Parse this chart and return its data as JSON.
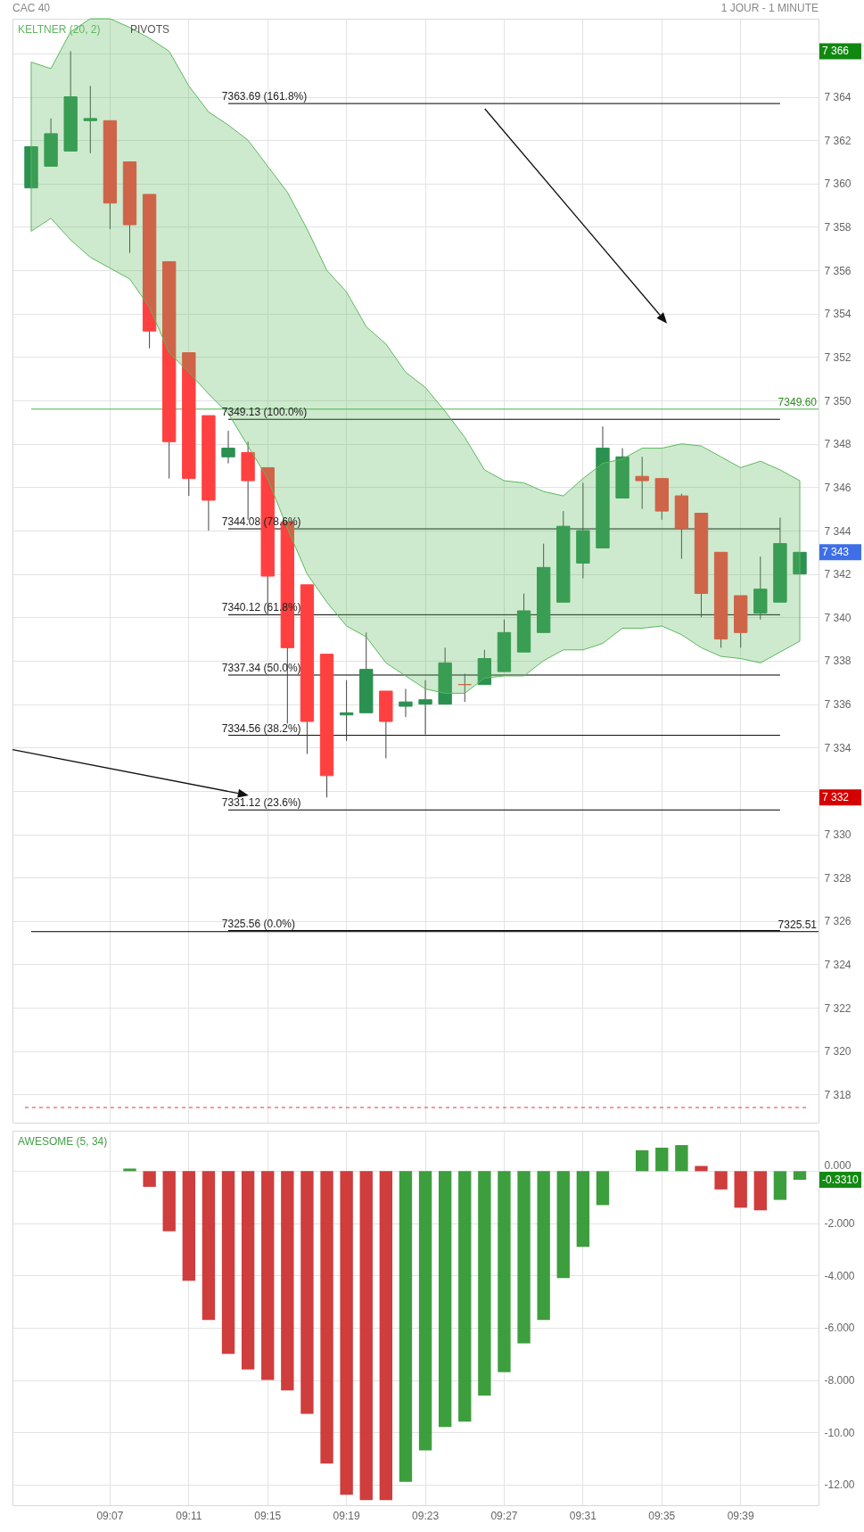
{
  "chart_data": [
    {
      "type": "candlestick",
      "title": "CAC 40",
      "subtitle": "1 JOUR - 1 MINUTE",
      "categories": [
        null,
        null,
        null,
        null,
        null,
        null,
        null,
        null,
        null,
        null,
        null,
        null,
        null,
        null,
        null,
        null,
        null,
        null,
        null,
        null,
        null,
        null,
        null,
        null,
        null,
        null,
        null,
        null,
        null,
        null,
        null,
        null,
        null,
        null,
        null,
        null,
        null,
        null,
        null,
        null
      ],
      "ohlc": [
        [
          7359.8,
          7361.7,
          7359.8,
          7361.7
        ],
        [
          7360.8,
          7363.0,
          7360.8,
          7362.3
        ],
        [
          7361.5,
          7366.1,
          7361.5,
          7364.0
        ],
        [
          7362.9,
          7364.5,
          7361.4,
          7363.0
        ],
        [
          7362.9,
          7362.9,
          7357.9,
          7359.1
        ],
        [
          7361.0,
          7361.0,
          7356.8,
          7358.1
        ],
        [
          7359.5,
          7359.5,
          7352.4,
          7353.2
        ],
        [
          7356.4,
          7356.4,
          7346.4,
          7348.1
        ],
        [
          7352.2,
          7352.2,
          7345.6,
          7346.4
        ],
        [
          7349.3,
          7349.3,
          7344.0,
          7345.4
        ],
        [
          7347.4,
          7348.6,
          7347.1,
          7347.8
        ],
        [
          7347.6,
          7348.1,
          7344.5,
          7346.3
        ],
        [
          7346.9,
          7346.9,
          7340.1,
          7341.9
        ],
        [
          7344.4,
          7344.4,
          7335.1,
          7338.6
        ],
        [
          7341.5,
          7341.5,
          7333.7,
          7335.2
        ],
        [
          7338.3,
          7338.3,
          7331.7,
          7332.7
        ],
        [
          7335.5,
          7337.1,
          7334.3,
          7335.6
        ],
        [
          7335.6,
          7339.3,
          7335.6,
          7337.6
        ],
        [
          7336.6,
          7336.6,
          7333.5,
          7335.2
        ],
        [
          7335.9,
          7336.7,
          7335.4,
          7336.1
        ],
        [
          7336.0,
          7337.1,
          7334.6,
          7336.2
        ],
        [
          7336.0,
          7338.6,
          7336.0,
          7337.9
        ],
        [
          7336.9,
          7337.4,
          7336.1,
          7336.9
        ],
        [
          7336.9,
          7338.5,
          7336.9,
          7338.1
        ],
        [
          7337.5,
          7339.9,
          7337.5,
          7339.3
        ],
        [
          7338.4,
          7341.1,
          7338.4,
          7340.3
        ],
        [
          7339.3,
          7343.4,
          7339.3,
          7342.3
        ],
        [
          7340.7,
          7344.9,
          7340.7,
          7344.2
        ],
        [
          7342.5,
          7346.2,
          7341.8,
          7344.0
        ],
        [
          7343.2,
          7348.8,
          7343.2,
          7347.8
        ],
        [
          7345.5,
          7347.8,
          7345.5,
          7347.4
        ],
        [
          7346.5,
          7347.4,
          7345.0,
          7346.3
        ],
        [
          7346.4,
          7346.4,
          7344.5,
          7344.9
        ],
        [
          7345.6,
          7345.7,
          7342.7,
          7344.1
        ],
        [
          7344.8,
          7344.8,
          7340.0,
          7341.1
        ],
        [
          7343.0,
          7343.0,
          7338.6,
          7339.0
        ],
        [
          7341.0,
          7341.0,
          7338.6,
          7339.3
        ],
        [
          7340.2,
          7342.8,
          7339.9,
          7341.3
        ],
        [
          7340.7,
          7344.6,
          7340.7,
          7343.4
        ],
        [
          7342.0,
          7343.0,
          7342.0,
          7343.0
        ]
      ],
      "colors": [
        "#2a9150",
        "#2a9150",
        "#2a9150",
        "#2a9150",
        "#ff4040",
        "#ff4040",
        "#ff4040",
        "#ff4040",
        "#ff4040",
        "#ff4040",
        "#2a9150",
        "#ff4040",
        "#ff4040",
        "#ff4040",
        "#ff4040",
        "#ff4040",
        "#2a9150",
        "#2a9150",
        "#ff4040",
        "#2a9150",
        "#2a9150",
        "#2a9150",
        "#ff4040",
        "#2a9150",
        "#2a9150",
        "#2a9150",
        "#2a9150",
        "#2a9150",
        "#2a9150",
        "#2a9150",
        "#2a9150",
        "#ff4040",
        "#ff4040",
        "#ff4040",
        "#ff4040",
        "#ff4040",
        "#ff4040",
        "#2a9150",
        "#2a9150",
        "#2a9150"
      ],
      "series": [
        {
          "type": "area",
          "name": "KELTNER (20, 2)",
          "color": "#5cb85c",
          "upper": [
            7365.6,
            7365.3,
            7367.0,
            7367.6,
            7367.6,
            7367.2,
            7366.7,
            7366.1,
            7364.5,
            7363.3,
            7362.7,
            7362.0,
            7360.8,
            7359.6,
            7357.9,
            7356.0,
            7355.0,
            7353.4,
            7352.6,
            7351.3,
            7350.6,
            7349.5,
            7348.3,
            7346.8,
            7346.3,
            7346.2,
            7345.8,
            7345.6,
            7346.4,
            7347.1,
            7347.3,
            7347.8,
            7347.8,
            7348.0,
            7347.9,
            7347.4,
            7346.9,
            7347.2,
            7346.8,
            7346.3
          ],
          "values": [
            null,
            null,
            null,
            null,
            null,
            null,
            null,
            null,
            null,
            null,
            null,
            null,
            null,
            null,
            null,
            null,
            null,
            null,
            null,
            null,
            null,
            null,
            null,
            null,
            null,
            null,
            null,
            null,
            null,
            null,
            null,
            null,
            null,
            null,
            null,
            null,
            null,
            null,
            null,
            null
          ],
          "lower": [
            7357.8,
            7358.4,
            7357.4,
            7356.6,
            7356.1,
            7355.6,
            7354.3,
            7352.2,
            7351.3,
            7350.3,
            7349.4,
            7347.9,
            7346.4,
            7344.1,
            7342.0,
            7340.7,
            7339.6,
            7339.1,
            7337.9,
            7337.3,
            7336.7,
            7336.5,
            7336.5,
            7337.2,
            7337.3,
            7337.3,
            7338.0,
            7338.5,
            7338.5,
            7338.8,
            7339.5,
            7339.5,
            7339.6,
            7339.2,
            7338.6,
            7338.2,
            7338.1,
            7337.9,
            7338.4,
            7338.9
          ]
        }
      ],
      "ylim": [
        7316.7,
        7367.6
      ],
      "yticks": [
        {
          "value": 7318,
          "label": "7 318"
        },
        {
          "value": 7320,
          "label": "7 320"
        },
        {
          "value": 7322,
          "label": "7 322"
        },
        {
          "value": 7324,
          "label": "7 324"
        },
        {
          "value": 7326,
          "label": "7 326"
        },
        {
          "value": 7328,
          "label": "7 328"
        },
        {
          "value": 7330,
          "label": "7 330"
        },
        {
          "value": 7332,
          "label": null
        },
        {
          "value": 7334,
          "label": "7 334"
        },
        {
          "value": 7336,
          "label": "7 336"
        },
        {
          "value": 7338,
          "label": "7 338"
        },
        {
          "value": 7340,
          "label": "7 340"
        },
        {
          "value": 7342,
          "label": "7 342"
        },
        {
          "value": 7344,
          "label": "7 344"
        },
        {
          "value": 7346,
          "label": "7 346"
        },
        {
          "value": 7348,
          "label": "7 348"
        },
        {
          "value": 7350,
          "label": "7 350"
        },
        {
          "value": 7352,
          "label": "7 352"
        },
        {
          "value": 7354,
          "label": "7 354"
        },
        {
          "value": 7356,
          "label": "7 356"
        },
        {
          "value": 7358,
          "label": "7 358"
        },
        {
          "value": 7360,
          "label": "7 360"
        },
        {
          "value": 7362,
          "label": "7 362"
        },
        {
          "value": 7364,
          "label": "7 364"
        },
        {
          "value": 7366,
          "label": null
        }
      ],
      "ref_lines": [
        {
          "axis": "y",
          "value": 7363.69,
          "label": "7363.69  (161.8%)"
        },
        {
          "axis": "y",
          "value": 7349.13,
          "label": "7349.13  (100.0%)"
        },
        {
          "axis": "y",
          "value": 7344.08,
          "label": "7344.08  (78.6%)"
        },
        {
          "axis": "y",
          "value": 7340.12,
          "label": "7340.12  (61.8%)"
        },
        {
          "axis": "y",
          "value": 7337.34,
          "label": "7337.34  (50.0%)"
        },
        {
          "axis": "y",
          "value": 7334.56,
          "label": "7334.56  (38.2%)"
        },
        {
          "axis": "y",
          "value": 7331.12,
          "label": "7331.12  (23.6%)"
        },
        {
          "axis": "y",
          "value": 7325.56,
          "label": "7325.56  (0.0%)"
        },
        {
          "axis": "y",
          "value": 7349.6,
          "label": "7349.60",
          "color": "#4caf50"
        },
        {
          "axis": "y",
          "value": 7325.51,
          "label": "7325.51",
          "color": "#000000"
        },
        {
          "axis": "y",
          "value": 7317.4,
          "color": "#e53935",
          "line_style": "dashed"
        }
      ],
      "annotations": [
        "PIVOTS",
        "7 366",
        "7 343",
        "7 332"
      ],
      "grid": true,
      "tick_labels": "y"
    },
    {
      "type": "bar",
      "title": "AWESOME (5, 34)",
      "categories": [
        null,
        null,
        null,
        null,
        "09:07",
        null,
        null,
        null,
        "09:11",
        null,
        null,
        null,
        "09:15",
        null,
        null,
        null,
        "09:19",
        null,
        null,
        null,
        "09:23",
        null,
        null,
        null,
        "09:27",
        null,
        null,
        null,
        "09:31",
        null,
        null,
        null,
        "09:35",
        null,
        null,
        null,
        "09:39",
        null,
        null,
        null
      ],
      "values": [
        null,
        null,
        null,
        null,
        null,
        0.1,
        -0.6,
        -2.3,
        -4.2,
        -5.7,
        -7.0,
        -7.6,
        -8.0,
        -8.4,
        -9.3,
        -11.2,
        -12.4,
        -12.6,
        -12.6,
        -11.9,
        -10.7,
        -9.8,
        -9.6,
        -8.6,
        -7.7,
        -6.6,
        -5.7,
        -4.1,
        -2.9,
        -1.3,
        0.0,
        0.8,
        0.9,
        1.0,
        0.2,
        -0.7,
        -1.4,
        -1.5,
        -1.1,
        -0.331
      ],
      "colors": [
        null,
        null,
        null,
        null,
        null,
        "#339933",
        "#cc3333",
        "#cc3333",
        "#cc3333",
        "#cc3333",
        "#cc3333",
        "#cc3333",
        "#cc3333",
        "#cc3333",
        "#cc3333",
        "#cc3333",
        "#cc3333",
        "#cc3333",
        "#cc3333",
        "#339933",
        "#339933",
        "#339933",
        "#339933",
        "#339933",
        "#339933",
        "#339933",
        "#339933",
        "#339933",
        "#339933",
        "#339933",
        "#339933",
        "#339933",
        "#339933",
        "#339933",
        "#cc3333",
        "#cc3333",
        "#cc3333",
        "#cc3333",
        "#339933",
        "#339933"
      ],
      "annotations": [
        "-0.3310"
      ],
      "ylim": [
        -12.8,
        1.55
      ],
      "yticks": [
        {
          "value": 0,
          "label": "0.000"
        },
        {
          "value": -2,
          "label": "-2.000"
        },
        {
          "value": -4,
          "label": "-4.000"
        },
        {
          "value": -6,
          "label": "-6.000"
        },
        {
          "value": -8,
          "label": "-8.000"
        },
        {
          "value": -10,
          "label": "-10.00"
        },
        {
          "value": -12,
          "label": "-12.00"
        }
      ],
      "grid": true
    }
  ]
}
